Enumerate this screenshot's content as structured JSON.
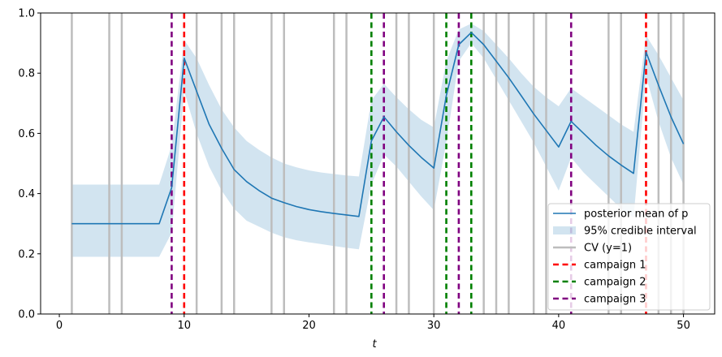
{
  "chart_data": {
    "type": "line",
    "xlabel": "t",
    "ylabel": "",
    "xlim": [
      -1.5,
      52.5
    ],
    "ylim": [
      0.0,
      1.0
    ],
    "xticks": [
      0,
      10,
      20,
      30,
      40,
      50
    ],
    "xtick_labels": [
      "0",
      "10",
      "20",
      "30",
      "40",
      "50"
    ],
    "yticks": [
      0.0,
      0.2,
      0.4,
      0.6,
      0.8,
      1.0
    ],
    "ytick_labels": [
      "0.0",
      "0.2",
      "0.4",
      "0.6",
      "0.8",
      "1.0"
    ],
    "grid": false,
    "legend_position": "lower-right",
    "legend": [
      {
        "label": "posterior mean of p",
        "kind": "line",
        "color": "#1f77b4"
      },
      {
        "label": "95% credible interval",
        "kind": "patch",
        "color": "#1f77b4"
      },
      {
        "label": "CV (y=1)",
        "kind": "line",
        "color": "#bdbdbd"
      },
      {
        "label": "campaign 1",
        "kind": "dashed",
        "color": "#ff0000"
      },
      {
        "label": "campaign 2",
        "kind": "dashed",
        "color": "#008000"
      },
      {
        "label": "campaign 3",
        "kind": "dashed",
        "color": "#800080"
      }
    ],
    "series": [
      {
        "name": "posterior mean of p",
        "color": "#1f77b4",
        "x": [
          1,
          2,
          3,
          4,
          5,
          6,
          7,
          8,
          9,
          10,
          11,
          12,
          13,
          14,
          15,
          16,
          17,
          18,
          19,
          20,
          21,
          22,
          23,
          24,
          25,
          26,
          27,
          28,
          29,
          30,
          31,
          32,
          33,
          34,
          35,
          36,
          37,
          38,
          39,
          40,
          41,
          42,
          43,
          44,
          45,
          46,
          47,
          48,
          49,
          50
        ],
        "y": [
          0.3,
          0.3,
          0.3,
          0.3,
          0.3,
          0.3,
          0.3,
          0.3,
          0.42,
          0.85,
          0.74,
          0.63,
          0.55,
          0.48,
          0.44,
          0.41,
          0.385,
          0.37,
          0.357,
          0.347,
          0.34,
          0.334,
          0.329,
          0.324,
          0.575,
          0.655,
          0.605,
          0.56,
          0.52,
          0.485,
          0.725,
          0.895,
          0.935,
          0.895,
          0.84,
          0.785,
          0.725,
          0.665,
          0.61,
          0.555,
          0.64,
          0.6,
          0.56,
          0.525,
          0.495,
          0.467,
          0.87,
          0.76,
          0.655,
          0.565
        ]
      }
    ],
    "credible_interval": {
      "name": "95% credible interval",
      "color": "#1f77b4",
      "x": [
        1,
        2,
        3,
        4,
        5,
        6,
        7,
        8,
        9,
        10,
        11,
        12,
        13,
        14,
        15,
        16,
        17,
        18,
        19,
        20,
        21,
        22,
        23,
        24,
        25,
        26,
        27,
        28,
        29,
        30,
        31,
        32,
        33,
        34,
        35,
        36,
        37,
        38,
        39,
        40,
        41,
        42,
        43,
        44,
        45,
        46,
        47,
        48,
        49,
        50
      ],
      "lower": [
        0.19,
        0.19,
        0.19,
        0.19,
        0.19,
        0.19,
        0.19,
        0.19,
        0.27,
        0.74,
        0.6,
        0.49,
        0.41,
        0.35,
        0.31,
        0.29,
        0.27,
        0.255,
        0.245,
        0.238,
        0.232,
        0.226,
        0.22,
        0.215,
        0.43,
        0.53,
        0.49,
        0.44,
        0.39,
        0.345,
        0.57,
        0.84,
        0.9,
        0.85,
        0.78,
        0.71,
        0.64,
        0.57,
        0.49,
        0.41,
        0.52,
        0.47,
        0.43,
        0.39,
        0.35,
        0.32,
        0.79,
        0.64,
        0.52,
        0.43
      ],
      "upper": [
        0.43,
        0.43,
        0.43,
        0.43,
        0.43,
        0.43,
        0.43,
        0.43,
        0.56,
        0.91,
        0.85,
        0.76,
        0.68,
        0.62,
        0.575,
        0.545,
        0.52,
        0.5,
        0.487,
        0.477,
        0.47,
        0.465,
        0.46,
        0.457,
        0.71,
        0.765,
        0.72,
        0.68,
        0.645,
        0.62,
        0.84,
        0.945,
        0.965,
        0.94,
        0.895,
        0.85,
        0.8,
        0.755,
        0.72,
        0.69,
        0.75,
        0.72,
        0.69,
        0.66,
        0.63,
        0.605,
        0.925,
        0.86,
        0.785,
        0.71
      ]
    },
    "cv_events": {
      "name": "CV (y=1)",
      "color": "#bdbdbd",
      "x": [
        1,
        4,
        5,
        11,
        13,
        14,
        17,
        18,
        22,
        23,
        27,
        28,
        30,
        34,
        35,
        36,
        38,
        39,
        44,
        45,
        48,
        49,
        50
      ]
    },
    "campaigns": [
      {
        "name": "campaign 1",
        "color": "#ff0000",
        "x": [
          10,
          47
        ]
      },
      {
        "name": "campaign 2",
        "color": "#008000",
        "x": [
          25,
          31,
          33
        ]
      },
      {
        "name": "campaign 3",
        "color": "#800080",
        "x": [
          9,
          26,
          32,
          41
        ]
      }
    ]
  }
}
